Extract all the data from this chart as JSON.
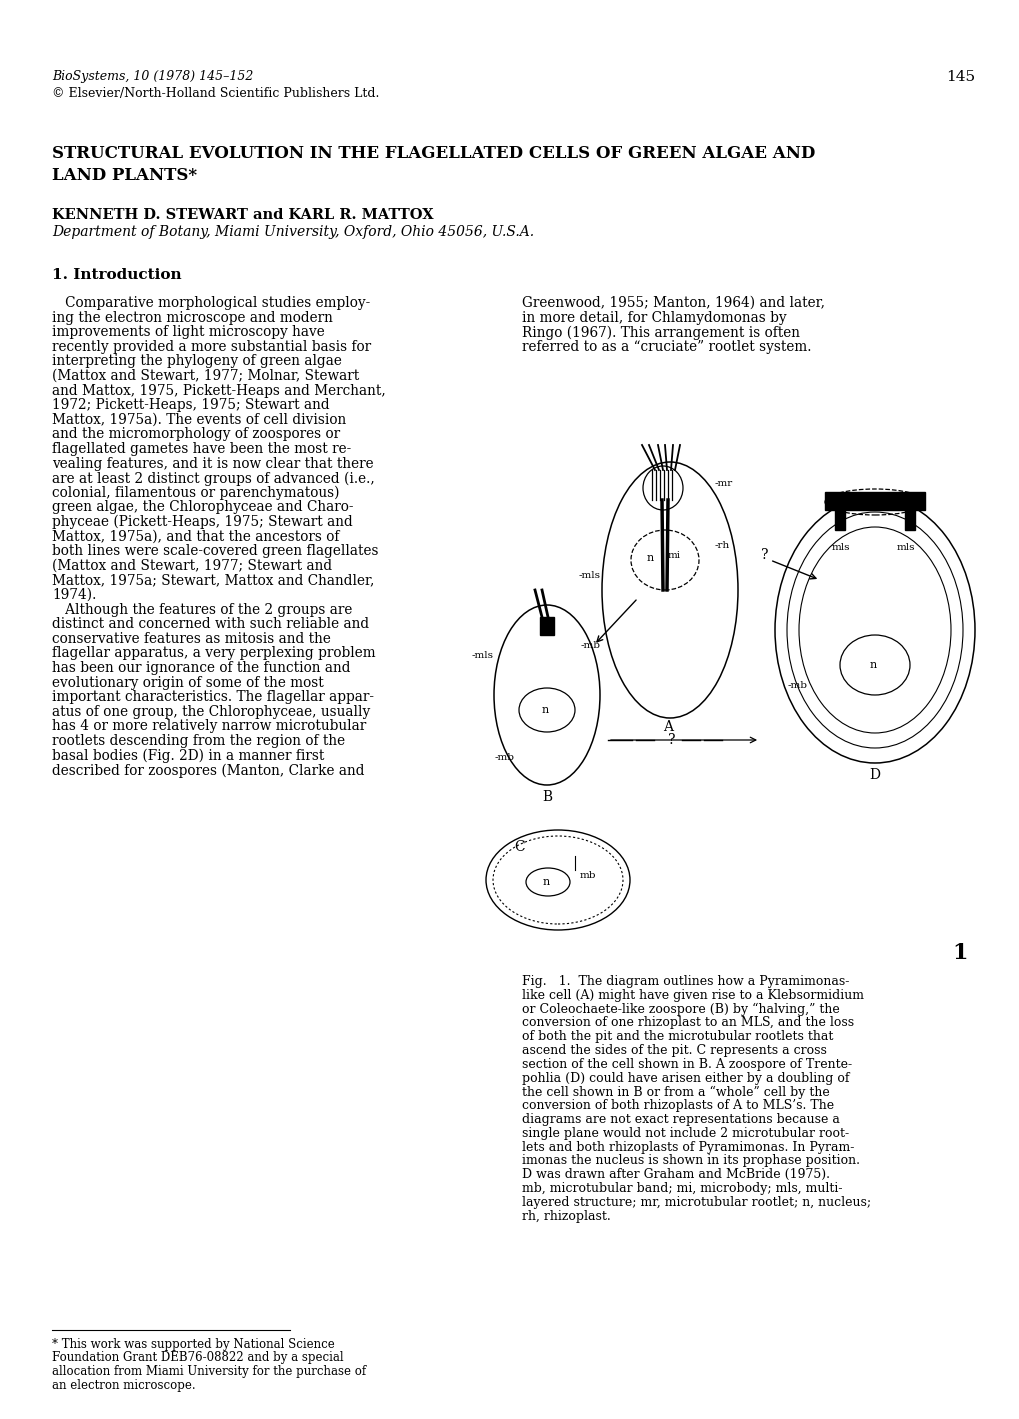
{
  "bg_color": "#ffffff",
  "page_number": "145",
  "journal_line1": "BioSystems, 10 (1978) 145–152",
  "journal_line2": "© Elsevier/North-Holland Scientific Publishers Ltd.",
  "title_line1": "STRUCTURAL EVOLUTION IN THE FLAGELLATED CELLS OF GREEN ALGAE AND",
  "title_line2": "LAND PLANTS*",
  "authors": "KENNETH D. STEWART and KARL R. MATTOX",
  "affiliation": "Department of Botany, Miami University, Oxford, Ohio 45056, U.S.A.",
  "section_header": "1. Introduction",
  "left_col_text": [
    "   Comparative morphological studies employ-",
    "ing the electron microscope and modern",
    "improvements of light microscopy have",
    "recently provided a more substantial basis for",
    "interpreting the phylogeny of green algae",
    "(Mattox and Stewart, 1977; Molnar, Stewart",
    "and Mattox, 1975, Pickett-Heaps and Merchant,",
    "1972; Pickett-Heaps, 1975; Stewart and",
    "Mattox, 1975a). The events of cell division",
    "and the micromorphology of zoospores or",
    "flagellated gametes have been the most re-",
    "vealing features, and it is now clear that there",
    "are at least 2 distinct groups of advanced (i.e.,",
    "colonial, filamentous or parenchymatous)",
    "green algae, the Chlorophyceae and Charo-",
    "phyceae (Pickett-Heaps, 1975; Stewart and",
    "Mattox, 1975a), and that the ancestors of",
    "both lines were scale-covered green flagellates",
    "(Mattox and Stewart, 1977; Stewart and",
    "Mattox, 1975a; Stewart, Mattox and Chandler,",
    "1974).",
    "   Although the features of the 2 groups are",
    "distinct and concerned with such reliable and",
    "conservative features as mitosis and the",
    "flagellar apparatus, a very perplexing problem",
    "has been our ignorance of the function and",
    "evolutionary origin of some of the most",
    "important characteristics. The flagellar appar-",
    "atus of one group, the Chlorophyceae, usually",
    "has 4 or more relatively narrow microtubular",
    "rootlets descending from the region of the",
    "basal bodies (Fig. 2D) in a manner first",
    "described for zoospores (Manton, Clarke and"
  ],
  "right_col_text_top": [
    "Greenwood, 1955; Manton, 1964) and later,",
    "in more detail, for Chlamydomonas by",
    "Ringo (1967). This arrangement is often",
    "referred to as a “cruciate” rootlet system."
  ],
  "fig_caption_parts": [
    {
      "text": "Fig.   1.  The diagram outlines how a ",
      "style": "normal"
    },
    {
      "text": "Pyramimonas",
      "style": "italic"
    },
    {
      "text": "-\nlike cell (A) might have given rise to a ",
      "style": "normal"
    },
    {
      "text": "Klebsormidium",
      "style": "italic"
    },
    {
      "text": "\nor ",
      "style": "normal"
    },
    {
      "text": "Coleochaete",
      "style": "italic"
    },
    {
      "text": "-like zoospore (B) by “halving,” the\nconversion of one rhizoplast to an MLS, and the loss\nof both the pit and the microtubular rootlets that\nascend the sides of the pit. C represents a cross\nsection of the cell shown in B. A zoospore of Trente-\npohlia (D) could have arisen either by a doubling of\nthe cell shown in B or from a “whole” cell by the\nconversion of both rhizoplasts of A to MLS’s. The\ndiagrams are not exact representations because a\nsingle plane would not include 2 microtubular root-\nlets and both rhizoplasts of ",
      "style": "normal"
    },
    {
      "text": "Pyramimonas",
      "style": "italic"
    },
    {
      "text": ". In ",
      "style": "normal"
    },
    {
      "text": "Pyram-\nimonas",
      "style": "italic"
    },
    {
      "text": " the nucleus is shown in its prophase position.\nD was drawn after Graham and McBride (1975).\nmb, microtubular band; mi, microbody; mls, multi-\nlayered structure; mr, microtubular rootlet; n, nucleus;\nrh, rhizoplast.",
      "style": "normal"
    }
  ],
  "fig_caption_lines": [
    "Fig.   1.  The diagram outlines how a Pyramimonas-",
    "like cell (A) might have given rise to a Klebsormidium",
    "or Coleochaete-like zoospore (B) by “halving,” the",
    "conversion of one rhizoplast to an MLS, and the loss",
    "of both the pit and the microtubular rootlets that",
    "ascend the sides of the pit. C represents a cross",
    "section of the cell shown in B. A zoospore of Trente-",
    "pohlia (D) could have arisen either by a doubling of",
    "the cell shown in B or from a “whole” cell by the",
    "conversion of both rhizoplasts of A to MLS’s. The",
    "diagrams are not exact representations because a",
    "single plane would not include 2 microtubular root-",
    "lets and both rhizoplasts of Pyramimonas. In Pyram-",
    "imonas the nucleus is shown in its prophase position.",
    "D was drawn after Graham and McBride (1975).",
    "mb, microtubular band; mi, microbody; mls, multi-",
    "layered structure; mr, microtubular rootlet; n, nucleus;",
    "rh, rhizoplast."
  ],
  "footnote_text": [
    "* This work was supported by National Science",
    "Foundation Grant DEB76-08822 and by a special",
    "allocation from Miami University for the purchase of",
    "an electron microscope."
  ],
  "fig_number": "1"
}
